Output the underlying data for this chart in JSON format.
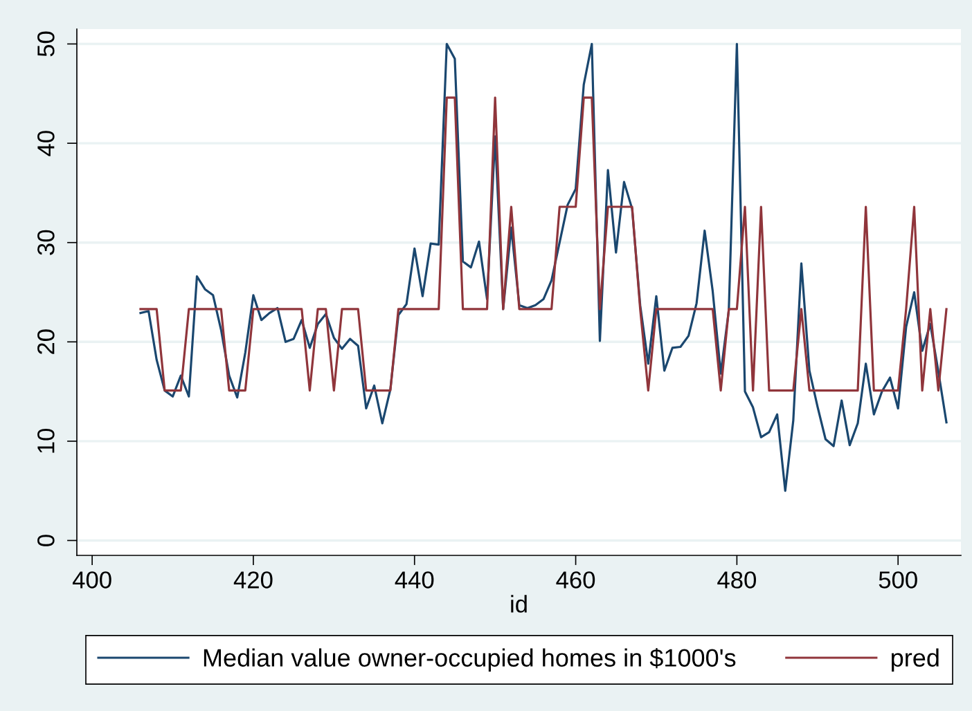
{
  "chart_data": {
    "type": "line",
    "xlabel": "id",
    "x": [
      406,
      407,
      408,
      409,
      410,
      411,
      412,
      413,
      414,
      415,
      416,
      417,
      418,
      419,
      420,
      421,
      422,
      423,
      424,
      425,
      426,
      427,
      428,
      429,
      430,
      431,
      432,
      433,
      434,
      435,
      436,
      437,
      438,
      439,
      440,
      441,
      442,
      443,
      444,
      445,
      446,
      447,
      448,
      449,
      450,
      451,
      452,
      453,
      454,
      455,
      456,
      457,
      458,
      459,
      460,
      461,
      462,
      463,
      464,
      465,
      466,
      467,
      468,
      469,
      470,
      471,
      472,
      473,
      474,
      475,
      476,
      477,
      478,
      479,
      480,
      481,
      482,
      483,
      484,
      485,
      486,
      487,
      488,
      489,
      490,
      491,
      492,
      493,
      494,
      495,
      496,
      497,
      498,
      499,
      500,
      501,
      502,
      503,
      504,
      505,
      506
    ],
    "series": [
      {
        "name": "Median value owner-occupied homes in $1000's",
        "color": "#1a476f",
        "values": [
          22.9,
          23.1,
          18.2,
          15.1,
          14.5,
          16.6,
          14.5,
          26.6,
          25.3,
          24.7,
          21.2,
          16.6,
          14.4,
          18.9,
          24.7,
          22.2,
          22.9,
          23.4,
          20.0,
          20.3,
          22.2,
          19.4,
          21.8,
          22.8,
          20.4,
          19.3,
          20.3,
          19.6,
          13.3,
          15.6,
          11.8,
          15.2,
          22.7,
          23.8,
          29.4,
          24.6,
          29.9,
          29.8,
          50.0,
          48.5,
          28.1,
          27.5,
          30.1,
          24.3,
          40.7,
          23.3,
          31.5,
          23.7,
          23.4,
          23.7,
          24.3,
          26.2,
          30.0,
          33.8,
          35.4,
          45.9,
          50.0,
          20.1,
          37.3,
          29.0,
          36.1,
          33.4,
          23.7,
          17.8,
          24.6,
          17.1,
          19.4,
          19.5,
          20.6,
          23.9,
          31.2,
          25.1,
          16.8,
          23.2,
          50.0,
          15.0,
          13.4,
          10.4,
          10.9,
          12.7,
          5.0,
          12.1,
          27.9,
          17.1,
          13.5,
          10.2,
          9.5,
          14.1,
          9.6,
          11.8,
          17.8,
          12.7,
          15.0,
          16.4,
          13.3,
          21.5,
          25.0,
          19.1,
          21.8,
          17.0,
          11.9
        ]
      },
      {
        "name": "pred",
        "color": "#90353b",
        "values": [
          23.3,
          23.3,
          23.3,
          15.1,
          15.1,
          15.1,
          23.3,
          23.3,
          23.3,
          23.3,
          23.3,
          15.1,
          15.1,
          15.1,
          23.3,
          23.3,
          23.3,
          23.3,
          23.3,
          23.3,
          23.3,
          15.1,
          23.3,
          23.3,
          15.1,
          23.3,
          23.3,
          23.3,
          15.1,
          15.1,
          15.1,
          15.1,
          23.3,
          23.3,
          23.3,
          23.3,
          23.3,
          23.3,
          44.6,
          44.6,
          23.3,
          23.3,
          23.3,
          23.3,
          44.6,
          23.3,
          33.6,
          23.3,
          23.3,
          23.3,
          23.3,
          23.3,
          33.6,
          33.6,
          33.6,
          44.6,
          44.6,
          23.3,
          33.6,
          33.6,
          33.6,
          33.6,
          23.3,
          15.1,
          23.3,
          23.3,
          23.3,
          23.3,
          23.3,
          23.3,
          23.3,
          23.3,
          15.1,
          23.3,
          23.3,
          33.6,
          15.1,
          33.6,
          15.1,
          15.1,
          15.1,
          15.1,
          23.3,
          15.1,
          15.1,
          15.1,
          15.1,
          15.1,
          15.1,
          15.1,
          33.6,
          15.1,
          15.1,
          15.1,
          15.1,
          23.3,
          33.6,
          15.1,
          23.3,
          15.1,
          23.3
        ]
      }
    ],
    "xlim": [
      398.1,
      507.8
    ],
    "ylim": [
      -1.5,
      51.5
    ],
    "xticks": [
      400,
      420,
      440,
      460,
      480,
      500
    ],
    "yticks": [
      0,
      10,
      20,
      30,
      40,
      50
    ],
    "grid": "y",
    "legend": "bottom",
    "line_style": "solid"
  }
}
